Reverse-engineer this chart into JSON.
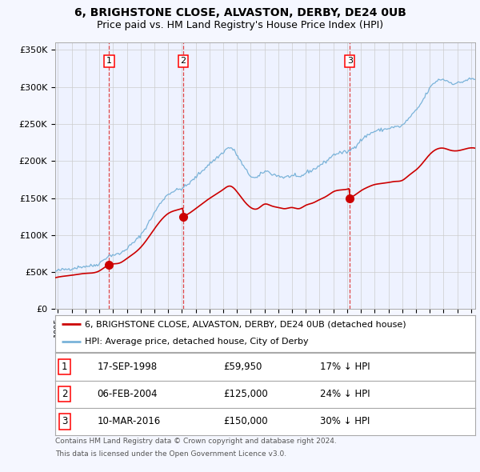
{
  "title_line1": "6, BRIGHSTONE CLOSE, ALVASTON, DERBY, DE24 0UB",
  "title_line2": "Price paid vs. HM Land Registry's House Price Index (HPI)",
  "ylim": [
    0,
    360000
  ],
  "yticks": [
    0,
    50000,
    100000,
    150000,
    200000,
    250000,
    300000,
    350000
  ],
  "ytick_labels": [
    "£0",
    "£50K",
    "£100K",
    "£150K",
    "£200K",
    "£250K",
    "£300K",
    "£350K"
  ],
  "hpi_color": "#7ab3d9",
  "sale_color": "#cc0000",
  "vline_color": "#dd3333",
  "bg_color": "#f5f7ff",
  "plot_bg_color": "#eef2ff",
  "grid_color": "#cccccc",
  "sale_dates_dec": [
    1998.71,
    2004.09,
    2016.19
  ],
  "sale_prices": [
    59950,
    125000,
    150000
  ],
  "xlim_start": 1994.8,
  "xlim_end": 2025.3,
  "legend_label_sale": "6, BRIGHSTONE CLOSE, ALVASTON, DERBY, DE24 0UB (detached house)",
  "legend_label_hpi": "HPI: Average price, detached house, City of Derby",
  "sale_table": [
    {
      "num": "1",
      "date": "17-SEP-1998",
      "price": "£59,950",
      "note": "17% ↓ HPI"
    },
    {
      "num": "2",
      "date": "06-FEB-2004",
      "price": "£125,000",
      "note": "24% ↓ HPI"
    },
    {
      "num": "3",
      "date": "10-MAR-2016",
      "price": "£150,000",
      "note": "30% ↓ HPI"
    }
  ],
  "footnote_line1": "Contains HM Land Registry data © Crown copyright and database right 2024.",
  "footnote_line2": "This data is licensed under the Open Government Licence v3.0."
}
